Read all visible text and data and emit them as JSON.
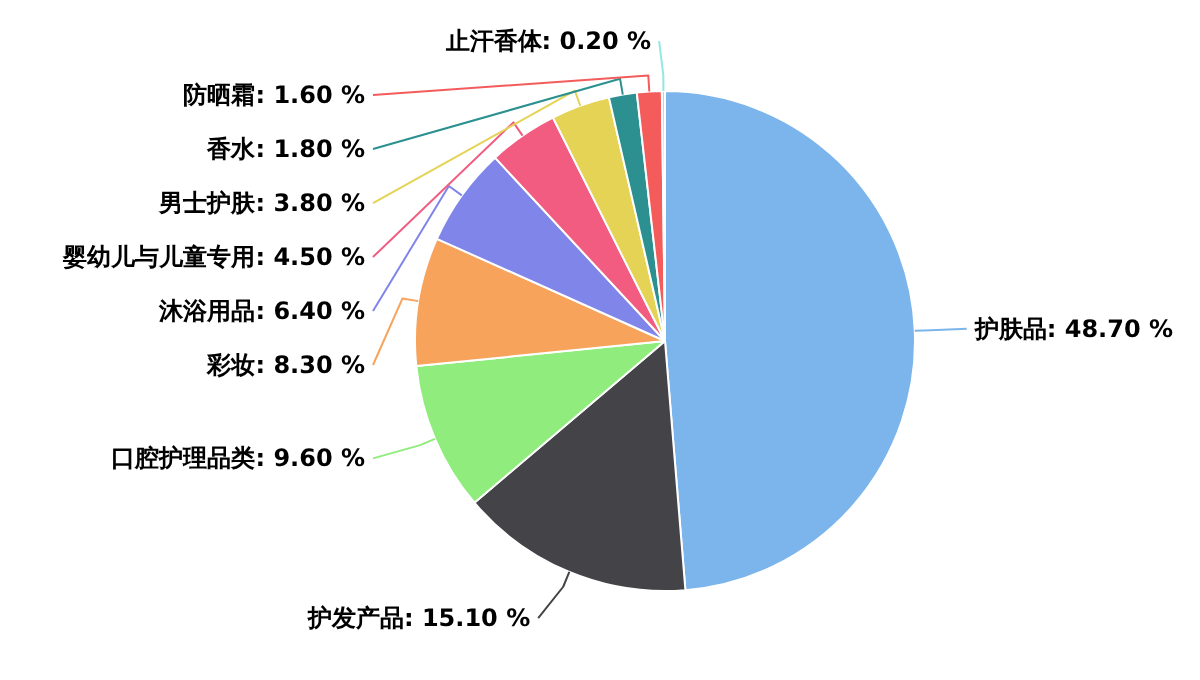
{
  "chart_data": {
    "type": "pie",
    "categories": [
      "护肤品",
      "护发产品",
      "口腔护理品类",
      "彩妆",
      "沐浴用品",
      "婴幼儿与儿童专用",
      "男士护肤",
      "香水",
      "防晒霜",
      "止汗香体"
    ],
    "values": [
      48.7,
      15.1,
      9.6,
      8.3,
      6.4,
      4.5,
      3.8,
      1.8,
      1.6,
      0.2
    ],
    "colors": [
      "#7cb5ec",
      "#434348",
      "#90ed7d",
      "#f7a35c",
      "#8085e9",
      "#f15c80",
      "#e4d354",
      "#2b908f",
      "#f45b5b",
      "#91e8e1"
    ],
    "value_labels": [
      "48.70 %",
      "15.10 %",
      "9.60 %",
      "8.30 %",
      "6.40 %",
      "4.50 %",
      "3.80 %",
      "1.80 %",
      "1.60 %",
      "0.20 %"
    ]
  }
}
